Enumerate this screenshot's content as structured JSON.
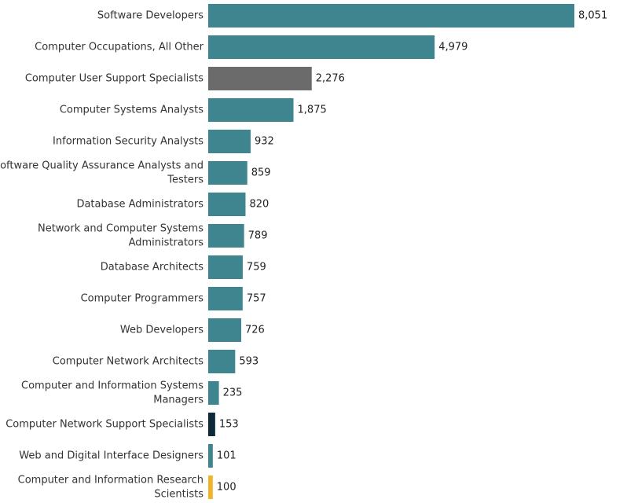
{
  "chart_data": {
    "type": "bar",
    "orientation": "horizontal",
    "title": "",
    "xlabel": "",
    "ylabel": "",
    "grid": false,
    "xlim": [
      0,
      8051
    ],
    "categories": [
      "Software Developers",
      "Computer Occupations, All Other",
      "Computer User Support Specialists",
      "Computer Systems Analysts",
      "Information Security Analysts",
      "Software Quality Assurance Analysts and Testers",
      "Database Administrators",
      "Network and Computer Systems Administrators",
      "Database Architects",
      "Computer Programmers",
      "Web Developers",
      "Computer Network Architects",
      "Computer and Information Systems Managers",
      "Computer Network Support Specialists",
      "Web and Digital Interface Designers",
      "Computer and Information Research Scientists"
    ],
    "values": [
      8051,
      4979,
      2276,
      1875,
      932,
      859,
      820,
      789,
      759,
      757,
      726,
      593,
      235,
      153,
      101,
      100
    ],
    "value_labels": [
      "8,051",
      "4,979",
      "2,276",
      "1,875",
      "932",
      "859",
      "820",
      "789",
      "759",
      "757",
      "726",
      "593",
      "235",
      "153",
      "101",
      "100"
    ],
    "label_lines": [
      [
        "Software Developers"
      ],
      [
        "Computer Occupations, All Other"
      ],
      [
        "Computer User Support Specialists"
      ],
      [
        "Computer Systems Analysts"
      ],
      [
        "Information Security Analysts"
      ],
      [
        "Software Quality Assurance Analysts and",
        "Testers"
      ],
      [
        "Database Administrators"
      ],
      [
        "Network and Computer Systems",
        "Administrators"
      ],
      [
        "Database Architects"
      ],
      [
        "Computer Programmers"
      ],
      [
        "Web Developers"
      ],
      [
        "Computer Network Architects"
      ],
      [
        "Computer and Information Systems",
        "Managers"
      ],
      [
        "Computer Network Support Specialists"
      ],
      [
        "Web and Digital Interface Designers"
      ],
      [
        "Computer and Information Research",
        "Scientists"
      ]
    ],
    "colors": [
      "#3f858f",
      "#3f858f",
      "#6b6b6b",
      "#3f858f",
      "#3f858f",
      "#3f858f",
      "#3f858f",
      "#3f858f",
      "#3f858f",
      "#3f858f",
      "#3f858f",
      "#3f858f",
      "#3f858f",
      "#0d2a3a",
      "#3f858f",
      "#f0b429"
    ]
  }
}
